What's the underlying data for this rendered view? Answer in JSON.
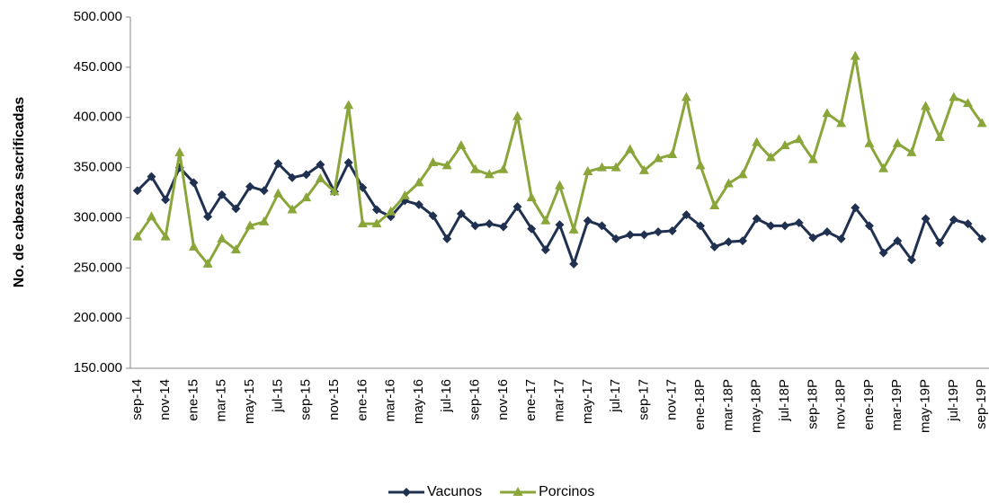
{
  "chart_data": {
    "type": "line",
    "y_label": "No. de cabezas sacrificadas",
    "categories": [
      "sep-14",
      null,
      "nov-14",
      null,
      "ene-15",
      null,
      "mar-15",
      null,
      "may-15",
      null,
      "jul-15",
      null,
      "sep-15",
      null,
      "nov-15",
      null,
      "ene-16",
      null,
      "mar-16",
      null,
      "may-16",
      null,
      "jul-16",
      null,
      "sep-16",
      null,
      "nov-16",
      null,
      "ene-17",
      null,
      "mar-17",
      null,
      "may-17",
      null,
      "jul-17",
      null,
      "sep-17",
      null,
      "nov-17",
      null,
      "ene-18P",
      null,
      "mar-18P",
      null,
      "may-18P",
      null,
      "jul-18P",
      null,
      "sep-18P",
      null,
      "nov-18P",
      null,
      "ene-19P",
      null,
      "mar-19P",
      null,
      "may-19P",
      null,
      "jul-19P",
      null,
      "sep-19P"
    ],
    "series": [
      {
        "name": "Vacunos",
        "color": "#1f3050",
        "marker": "diamond",
        "values": [
          327000,
          341000,
          318000,
          350000,
          335000,
          301000,
          323000,
          309000,
          331000,
          327000,
          354000,
          340000,
          343000,
          353000,
          326000,
          355000,
          330000,
          308000,
          301000,
          317000,
          313000,
          302000,
          279000,
          304000,
          292000,
          294000,
          291000,
          311000,
          289000,
          268000,
          293000,
          254000,
          297000,
          292000,
          279000,
          283000,
          283000,
          286000,
          287000,
          303000,
          292000,
          271000,
          276000,
          277000,
          299000,
          292000,
          292000,
          295000,
          280000,
          286000,
          279000,
          310000,
          292000,
          265000,
          277000,
          258000,
          299000,
          275000,
          298000,
          294000,
          279000
        ]
      },
      {
        "name": "Porcinos",
        "color": "#8aa63a",
        "marker": "triangle",
        "values": [
          281000,
          301000,
          281000,
          365000,
          271000,
          254000,
          279000,
          268000,
          292000,
          296000,
          324000,
          308000,
          320000,
          339000,
          326000,
          412000,
          294000,
          294000,
          306000,
          322000,
          335000,
          355000,
          352000,
          372000,
          348000,
          343000,
          348000,
          401000,
          320000,
          297000,
          332000,
          288000,
          346000,
          350000,
          350000,
          368000,
          347000,
          359000,
          363000,
          420000,
          352000,
          312000,
          334000,
          343000,
          375000,
          360000,
          372000,
          378000,
          358000,
          404000,
          394000,
          461000,
          374000,
          349000,
          374000,
          365000,
          411000,
          380000,
          420000,
          414000,
          394000
        ]
      }
    ],
    "ylim": [
      150000,
      500000
    ],
    "yticks": [
      {
        "value": 150000,
        "label": "150.000"
      },
      {
        "value": 200000,
        "label": "200.000"
      },
      {
        "value": 250000,
        "label": "250.000"
      },
      {
        "value": 300000,
        "label": "300.000"
      },
      {
        "value": 350000,
        "label": "350.000"
      },
      {
        "value": 400000,
        "label": "400.000"
      },
      {
        "value": 450000,
        "label": "450.000"
      },
      {
        "value": 500000,
        "label": "500.000"
      }
    ],
    "grid": false,
    "legend": "bottom"
  }
}
